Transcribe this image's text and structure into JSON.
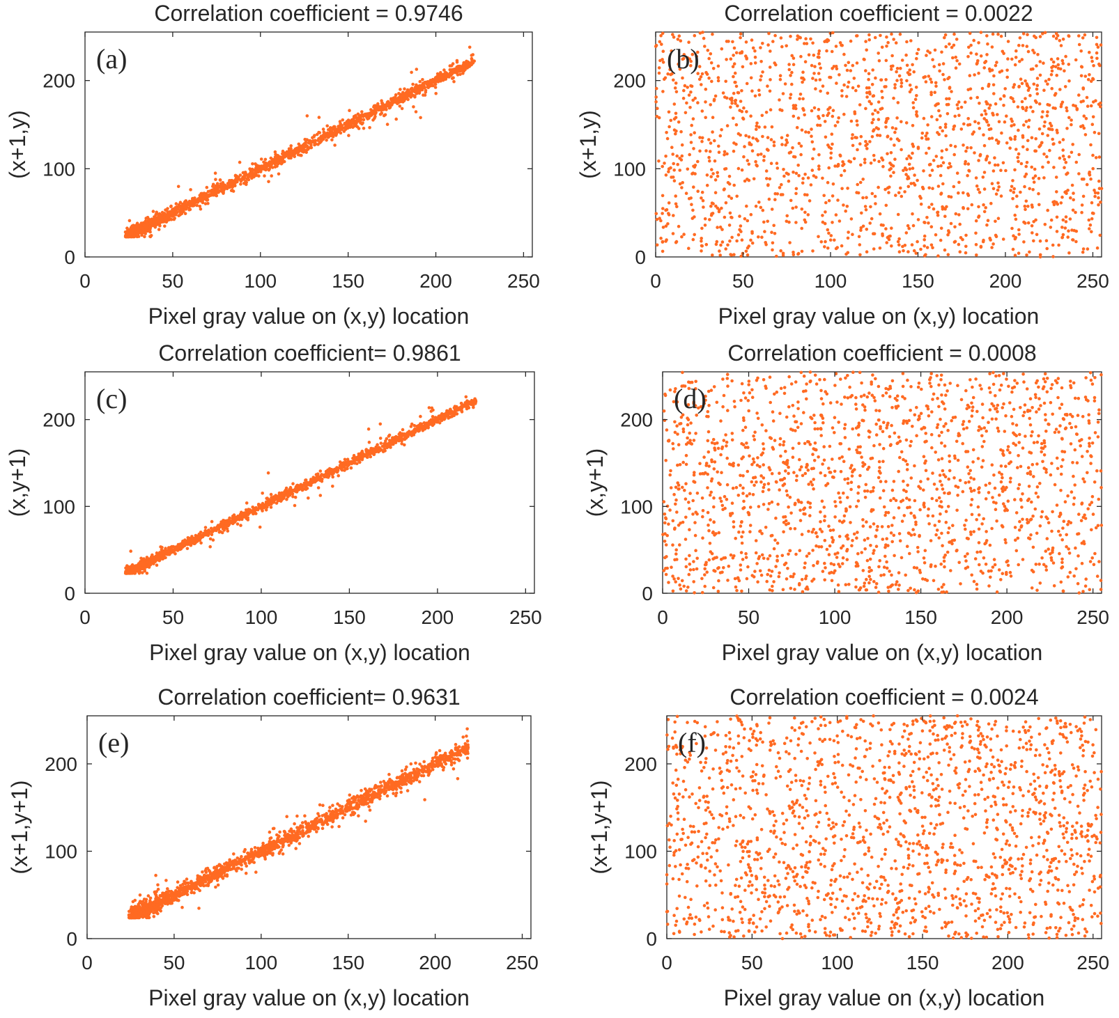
{
  "chart_data": [
    {
      "type": "scatter",
      "panel_label": "(a)",
      "title": "Correlation coefficient = 0.9746",
      "xlabel": "Pixel gray value on (x,y) location",
      "ylabel": "(x+1,y)",
      "xlim": [
        0,
        255
      ],
      "ylim": [
        0,
        255
      ],
      "xticks": [
        "0",
        "50",
        "100",
        "150",
        "200",
        "250"
      ],
      "yticks": [
        "0",
        "100",
        "200"
      ],
      "distribution": "correlated",
      "correlation": 0.9746,
      "x_range": [
        23,
        222
      ],
      "point_count": 1800,
      "color": "#FF6A22"
    },
    {
      "type": "scatter",
      "panel_label": "(b)",
      "title": "Correlation coefficient = 0.0022",
      "xlabel": "Pixel gray value on (x,y) location",
      "ylabel": "(x+1,y)",
      "xlim": [
        0,
        255
      ],
      "ylim": [
        0,
        255
      ],
      "xticks": [
        "0",
        "50",
        "100",
        "150",
        "200",
        "250"
      ],
      "yticks": [
        "0",
        "100",
        "200"
      ],
      "distribution": "uniform",
      "correlation": 0.0022,
      "x_range": [
        0,
        255
      ],
      "point_count": 1700,
      "color": "#FF6A22"
    },
    {
      "type": "scatter",
      "panel_label": "(c)",
      "title": "Correlation coefficient= 0.9861",
      "xlabel": "Pixel gray value on (x,y) location",
      "ylabel": "(x,y+1)",
      "xlim": [
        0,
        255
      ],
      "ylim": [
        0,
        255
      ],
      "xticks": [
        "0",
        "50",
        "100",
        "150",
        "200",
        "250"
      ],
      "yticks": [
        "0",
        "100",
        "200"
      ],
      "distribution": "correlated",
      "correlation": 0.9861,
      "x_range": [
        23,
        222
      ],
      "point_count": 1800,
      "color": "#FF6A22"
    },
    {
      "type": "scatter",
      "panel_label": "(d)",
      "title": "Correlation coefficient = 0.0008",
      "xlabel": "Pixel gray value on (x,y) location",
      "ylabel": "(x,y+1)",
      "xlim": [
        0,
        255
      ],
      "ylim": [
        0,
        255
      ],
      "xticks": [
        "0",
        "50",
        "100",
        "150",
        "200",
        "250"
      ],
      "yticks": [
        "0",
        "100",
        "200"
      ],
      "distribution": "uniform",
      "correlation": 0.0008,
      "x_range": [
        0,
        255
      ],
      "point_count": 1700,
      "color": "#FF6A22"
    },
    {
      "type": "scatter",
      "panel_label": "(e)",
      "title": "Correlation coefficient= 0.9631",
      "xlabel": "Pixel gray value on (x,y) location",
      "ylabel": "(x+1,y+1)",
      "xlim": [
        0,
        255
      ],
      "ylim": [
        0,
        255
      ],
      "xticks": [
        "0",
        "50",
        "100",
        "150",
        "200",
        "250"
      ],
      "yticks": [
        "0",
        "100",
        "200"
      ],
      "distribution": "correlated",
      "correlation": 0.9631,
      "x_range": [
        24,
        219
      ],
      "point_count": 1800,
      "color": "#FF6A22"
    },
    {
      "type": "scatter",
      "panel_label": "(f)",
      "title": "Correlation coefficient = 0.0024",
      "xlabel": "Pixel gray value on (x,y) location",
      "ylabel": "(x+1,y+1)",
      "xlim": [
        0,
        255
      ],
      "ylim": [
        0,
        255
      ],
      "xticks": [
        "0",
        "50",
        "100",
        "150",
        "200",
        "250"
      ],
      "yticks": [
        "0",
        "100",
        "200"
      ],
      "distribution": "uniform",
      "correlation": 0.0024,
      "x_range": [
        0,
        255
      ],
      "point_count": 1700,
      "color": "#FF6A22"
    }
  ]
}
